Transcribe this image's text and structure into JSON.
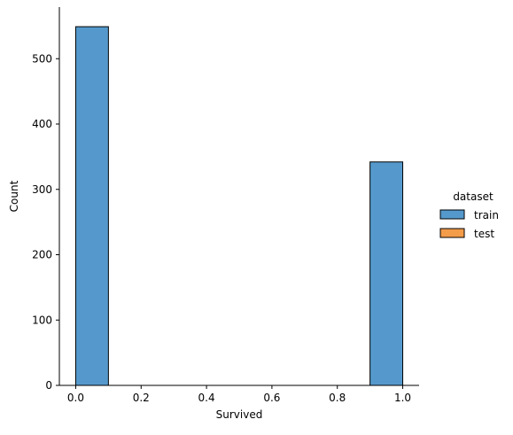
{
  "chart_data": {
    "type": "bar",
    "title": "",
    "xlabel": "Survived",
    "ylabel": "Count",
    "xlim": [
      -0.05,
      1.05
    ],
    "ylim": [
      0,
      579
    ],
    "x_ticks": [
      0.0,
      0.2,
      0.4,
      0.6,
      0.8,
      1.0
    ],
    "x_tick_labels": [
      "0.0",
      "0.2",
      "0.4",
      "0.6",
      "0.8",
      "1.0"
    ],
    "y_ticks": [
      0,
      100,
      200,
      300,
      400,
      500
    ],
    "y_tick_labels": [
      "0",
      "100",
      "200",
      "300",
      "400",
      "500"
    ],
    "bin_edges": [
      0.0,
      0.1,
      0.2,
      0.3,
      0.4,
      0.5,
      0.6,
      0.7,
      0.8,
      0.9,
      1.0
    ],
    "series": [
      {
        "name": "train",
        "color": "#5599cc",
        "values": [
          549,
          0,
          0,
          0,
          0,
          0,
          0,
          0,
          0,
          342
        ]
      },
      {
        "name": "test",
        "color": "#f39c4a",
        "values": [
          0,
          0,
          0,
          0,
          0,
          0,
          0,
          0,
          0,
          0
        ]
      }
    ],
    "legend": {
      "title": "dataset",
      "placement": "right"
    },
    "grid": false
  }
}
